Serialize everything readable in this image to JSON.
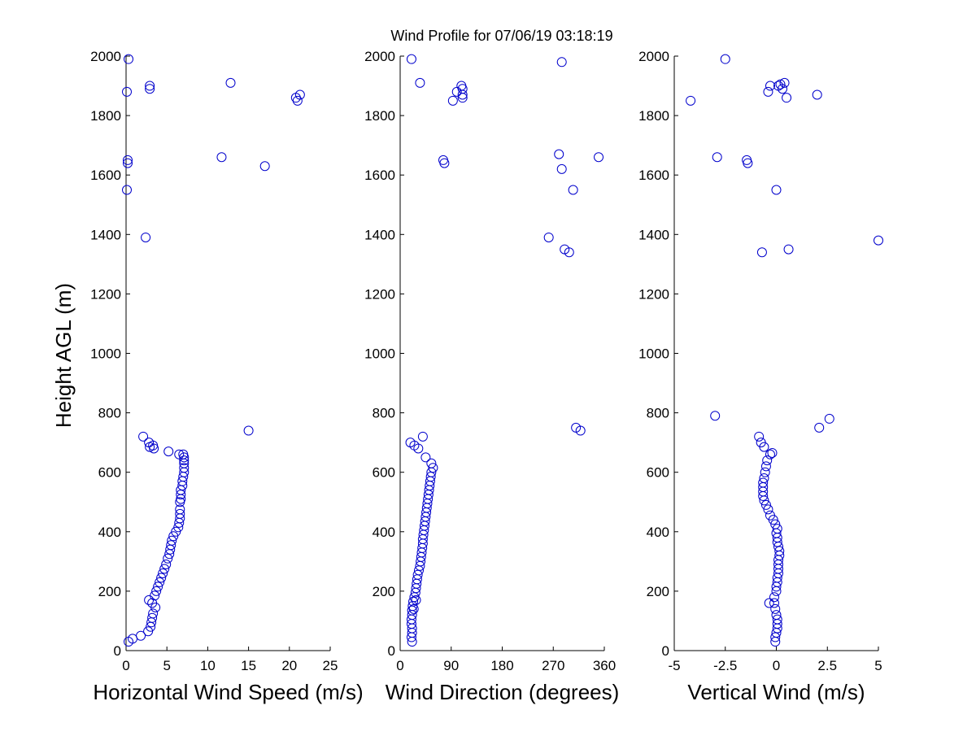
{
  "figure": {
    "title": "Wind Profile for  07/06/19 03:18:19",
    "ylabel": "Height AGL (m)"
  },
  "colors": {
    "marker": "#0000cc",
    "axis": "#000000",
    "background": "#ffffff"
  },
  "chart_data": [
    {
      "type": "scatter",
      "xlabel": "Horizontal Wind Speed (m/s)",
      "ylabel": "Height AGL (m)",
      "xlim": [
        0,
        25
      ],
      "ylim": [
        0,
        2000
      ],
      "xticks": [
        0,
        5,
        10,
        15,
        20,
        25
      ],
      "xtick_labels": [
        "0",
        "5",
        "10",
        "15",
        "20",
        "25"
      ],
      "yticks": [
        0,
        200,
        400,
        600,
        800,
        1000,
        1200,
        1400,
        1600,
        1800,
        2000
      ],
      "ytick_labels": [
        "0",
        "200",
        "400",
        "600",
        "800",
        "1000",
        "1200",
        "1400",
        "1600",
        "1800",
        "2000"
      ],
      "grid": false,
      "x": [
        0.3,
        0.8,
        1.8,
        2.7,
        3.0,
        3.1,
        3.2,
        3.3,
        3.5,
        3.7,
        3.9,
        4.1,
        4.3,
        4.5,
        4.7,
        4.9,
        5.1,
        5.3,
        5.4,
        5.5,
        5.6,
        5.8,
        6.1,
        6.4,
        6.5,
        6.6,
        6.6,
        6.6,
        6.6,
        6.7,
        6.7,
        6.7,
        6.9,
        6.9,
        7.0,
        7.1,
        7.1,
        7.1,
        7.1,
        7.1,
        7.0,
        6.5,
        5.2,
        3.4,
        2.9,
        3.3,
        2.8,
        2.1,
        15.0,
        2.4,
        0.1,
        0.2,
        0.2,
        17.0,
        11.7,
        21.0,
        20.8,
        0.1,
        2.9,
        2.9,
        12.8,
        0.3,
        21.3,
        2.8,
        3.2,
        3.6
      ],
      "y": [
        30,
        40,
        50,
        65,
        80,
        95,
        110,
        125,
        185,
        200,
        215,
        230,
        245,
        260,
        275,
        290,
        310,
        325,
        340,
        355,
        370,
        385,
        400,
        415,
        430,
        445,
        460,
        475,
        500,
        510,
        525,
        540,
        555,
        570,
        585,
        600,
        615,
        630,
        640,
        650,
        660,
        660,
        670,
        680,
        685,
        690,
        700,
        720,
        740,
        1390,
        1550,
        1640,
        1650,
        1630,
        1660,
        1850,
        1860,
        1880,
        1890,
        1900,
        1910,
        1990,
        1870,
        170,
        160,
        145
      ]
    },
    {
      "type": "scatter",
      "xlabel": "Wind Direction (degrees)",
      "ylabel": "Height AGL (m)",
      "xlim": [
        0,
        360
      ],
      "ylim": [
        0,
        2000
      ],
      "xticks": [
        0,
        90,
        180,
        270,
        360
      ],
      "xtick_labels": [
        "0",
        "90",
        "180",
        "270",
        "360"
      ],
      "yticks": [
        0,
        200,
        400,
        600,
        800,
        1000,
        1200,
        1400,
        1600,
        1800,
        2000
      ],
      "ytick_labels": [
        "0",
        "200",
        "400",
        "600",
        "800",
        "1000",
        "1200",
        "1400",
        "1600",
        "1800",
        "2000"
      ],
      "grid": false,
      "x": [
        21,
        20,
        21,
        21,
        20,
        20,
        21,
        21,
        22,
        23,
        25,
        27,
        28,
        29,
        30,
        31,
        33,
        35,
        36,
        37,
        38,
        39,
        40,
        40,
        41,
        42,
        43,
        44,
        45,
        46,
        47,
        48,
        49,
        50,
        51,
        52,
        53,
        54,
        55,
        58,
        55,
        45,
        32,
        25,
        18,
        40,
        318,
        310,
        262,
        298,
        290,
        305,
        285,
        280,
        350,
        78,
        76,
        93,
        100,
        110,
        110,
        110,
        108,
        35,
        285,
        20,
        24,
        28
      ],
      "y": [
        30,
        45,
        60,
        75,
        90,
        105,
        120,
        135,
        150,
        165,
        180,
        195,
        210,
        225,
        240,
        255,
        270,
        285,
        300,
        315,
        330,
        345,
        360,
        375,
        390,
        405,
        420,
        435,
        450,
        465,
        480,
        495,
        510,
        525,
        540,
        555,
        570,
        585,
        600,
        615,
        630,
        650,
        680,
        690,
        700,
        720,
        740,
        750,
        1390,
        1340,
        1350,
        1550,
        1620,
        1670,
        1660,
        1640,
        1650,
        1850,
        1880,
        1860,
        1870,
        1890,
        1900,
        1910,
        1980,
        1990,
        140,
        170
      ]
    },
    {
      "type": "scatter",
      "xlabel": "Vertical Wind (m/s)",
      "ylabel": "Height AGL (m)",
      "xlim": [
        -5,
        5
      ],
      "ylim": [
        0,
        2000
      ],
      "xticks": [
        -5,
        -2.5,
        0,
        2.5,
        5
      ],
      "xtick_labels": [
        "-5",
        "-2.5",
        "0",
        "2.5",
        "5"
      ],
      "yticks": [
        0,
        200,
        400,
        600,
        800,
        1000,
        1200,
        1400,
        1600,
        1800,
        2000
      ],
      "ytick_labels": [
        "0",
        "200",
        "400",
        "600",
        "800",
        "1000",
        "1200",
        "1400",
        "1600",
        "1800",
        "2000"
      ],
      "grid": false,
      "x": [
        -0.05,
        -0.05,
        0.0,
        0.05,
        0.05,
        0.05,
        0.0,
        -0.05,
        -0.35,
        -0.1,
        0.0,
        0.0,
        0.05,
        0.05,
        0.1,
        0.1,
        0.1,
        0.1,
        0.15,
        0.15,
        0.1,
        0.05,
        0.05,
        0.0,
        0.05,
        -0.05,
        -0.15,
        -0.3,
        -0.4,
        -0.5,
        -0.6,
        -0.65,
        -0.65,
        -0.65,
        -0.65,
        -0.6,
        -0.55,
        -0.5,
        -0.45,
        -0.3,
        -0.2,
        -0.6,
        -0.75,
        -0.85,
        2.6,
        2.1,
        -3.0,
        5.0,
        -0.4,
        0.3,
        -0.7,
        0.6,
        -1.4,
        -1.45,
        -2.9,
        -0.0,
        -4.2,
        -0.3,
        0.4,
        0.5,
        0.1,
        0.2,
        2.0,
        -2.5,
        -0.1
      ],
      "y": [
        30,
        45,
        60,
        75,
        90,
        105,
        120,
        140,
        160,
        180,
        200,
        215,
        230,
        245,
        260,
        275,
        290,
        305,
        320,
        335,
        350,
        365,
        380,
        395,
        410,
        425,
        440,
        455,
        475,
        490,
        505,
        520,
        535,
        550,
        565,
        580,
        600,
        620,
        640,
        660,
        665,
        685,
        700,
        720,
        780,
        750,
        790,
        1380,
        1880,
        1890,
        1340,
        1350,
        1640,
        1650,
        1660,
        1550,
        1850,
        1900,
        1910,
        1860,
        1900,
        1905,
        1870,
        1990,
        160
      ]
    }
  ]
}
